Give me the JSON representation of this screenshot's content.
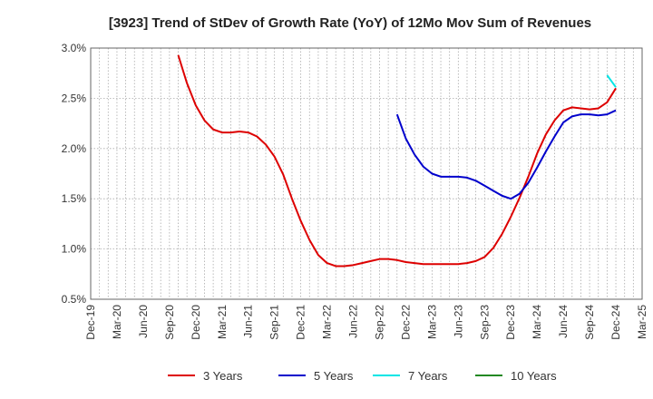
{
  "chart_data": {
    "type": "line",
    "title": "[3923]  Trend of StDev of Growth Rate (YoY) of 12Mo Mov Sum of Revenues",
    "xlabel": "",
    "ylabel": "",
    "ylim": [
      0.005,
      0.03
    ],
    "yticks": [
      0.005,
      0.01,
      0.015,
      0.02,
      0.025,
      0.03
    ],
    "ytick_labels": [
      "0.5%",
      "1.0%",
      "1.5%",
      "2.0%",
      "2.5%",
      "3.0%"
    ],
    "x_start": "Dec-19",
    "x_end": "Mar-25",
    "xtick_labels": [
      "Dec-19",
      "Mar-20",
      "Jun-20",
      "Sep-20",
      "Dec-20",
      "Mar-21",
      "Jun-21",
      "Sep-21",
      "Dec-21",
      "Mar-22",
      "Jun-22",
      "Sep-22",
      "Dec-22",
      "Mar-23",
      "Jun-23",
      "Sep-23",
      "Dec-23",
      "Mar-24",
      "Jun-24",
      "Sep-24",
      "Dec-24",
      "Mar-25"
    ],
    "grid": true,
    "legend_position": "bottom",
    "series": [
      {
        "name": "3 Years",
        "color": "#dd0000",
        "start": "Oct-20",
        "values": [
          0.0293,
          0.0265,
          0.0243,
          0.0228,
          0.0219,
          0.0216,
          0.0216,
          0.0217,
          0.0216,
          0.0212,
          0.0204,
          0.0192,
          0.0174,
          0.015,
          0.0128,
          0.0109,
          0.0094,
          0.0086,
          0.0083,
          0.0083,
          0.0084,
          0.0086,
          0.0088,
          0.009,
          0.009,
          0.0089,
          0.0087,
          0.0086,
          0.0085,
          0.0085,
          0.0085,
          0.0085,
          0.0085,
          0.0086,
          0.0088,
          0.0092,
          0.0101,
          0.0115,
          0.0132,
          0.0151,
          0.0172,
          0.0195,
          0.0214,
          0.0228,
          0.0238,
          0.0241,
          0.024,
          0.0239,
          0.024,
          0.0246,
          0.026
        ]
      },
      {
        "name": "5 Years",
        "color": "#0000cc",
        "start": "Nov-22",
        "values": [
          0.0234,
          0.021,
          0.0194,
          0.0182,
          0.0175,
          0.0172,
          0.0172,
          0.0172,
          0.0171,
          0.0168,
          0.0163,
          0.0158,
          0.0153,
          0.015,
          0.0155,
          0.0166,
          0.0181,
          0.0197,
          0.0212,
          0.0226,
          0.0232,
          0.0234,
          0.0234,
          0.0233,
          0.0234,
          0.0238
        ]
      },
      {
        "name": "7 Years",
        "color": "#00e5e5",
        "start": "Nov-24",
        "values": [
          0.0273,
          0.0261
        ]
      },
      {
        "name": "10 Years",
        "color": "#228822",
        "start": "",
        "values": []
      }
    ]
  }
}
